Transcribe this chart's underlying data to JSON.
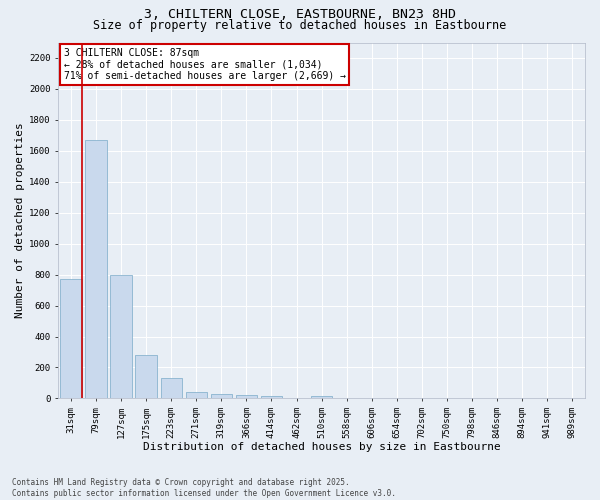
{
  "title1": "3, CHILTERN CLOSE, EASTBOURNE, BN23 8HD",
  "title2": "Size of property relative to detached houses in Eastbourne",
  "xlabel": "Distribution of detached houses by size in Eastbourne",
  "ylabel": "Number of detached properties",
  "categories": [
    "31sqm",
    "79sqm",
    "127sqm",
    "175sqm",
    "223sqm",
    "271sqm",
    "319sqm",
    "366sqm",
    "414sqm",
    "462sqm",
    "510sqm",
    "558sqm",
    "606sqm",
    "654sqm",
    "702sqm",
    "750sqm",
    "798sqm",
    "846sqm",
    "894sqm",
    "941sqm",
    "989sqm"
  ],
  "values": [
    770,
    1670,
    800,
    280,
    130,
    40,
    30,
    20,
    15,
    0,
    15,
    0,
    0,
    0,
    0,
    0,
    0,
    0,
    0,
    0,
    0
  ],
  "bar_color": "#c9d9ed",
  "bar_edge_color": "#7aaac8",
  "vline_color": "#cc0000",
  "vline_x_index": 0.6,
  "annotation_text": "3 CHILTERN CLOSE: 87sqm\n← 28% of detached houses are smaller (1,034)\n71% of semi-detached houses are larger (2,669) →",
  "annotation_box_color": "#ffffff",
  "annotation_box_edge": "#cc0000",
  "ylim": [
    0,
    2300
  ],
  "yticks": [
    0,
    200,
    400,
    600,
    800,
    1000,
    1200,
    1400,
    1600,
    1800,
    2000,
    2200
  ],
  "bg_color": "#e8eef5",
  "grid_color": "#ffffff",
  "footnote": "Contains HM Land Registry data © Crown copyright and database right 2025.\nContains public sector information licensed under the Open Government Licence v3.0.",
  "title_fontsize": 9.5,
  "subtitle_fontsize": 8.5,
  "tick_fontsize": 6.5,
  "label_fontsize": 8,
  "annot_fontsize": 7,
  "footnote_fontsize": 5.5
}
